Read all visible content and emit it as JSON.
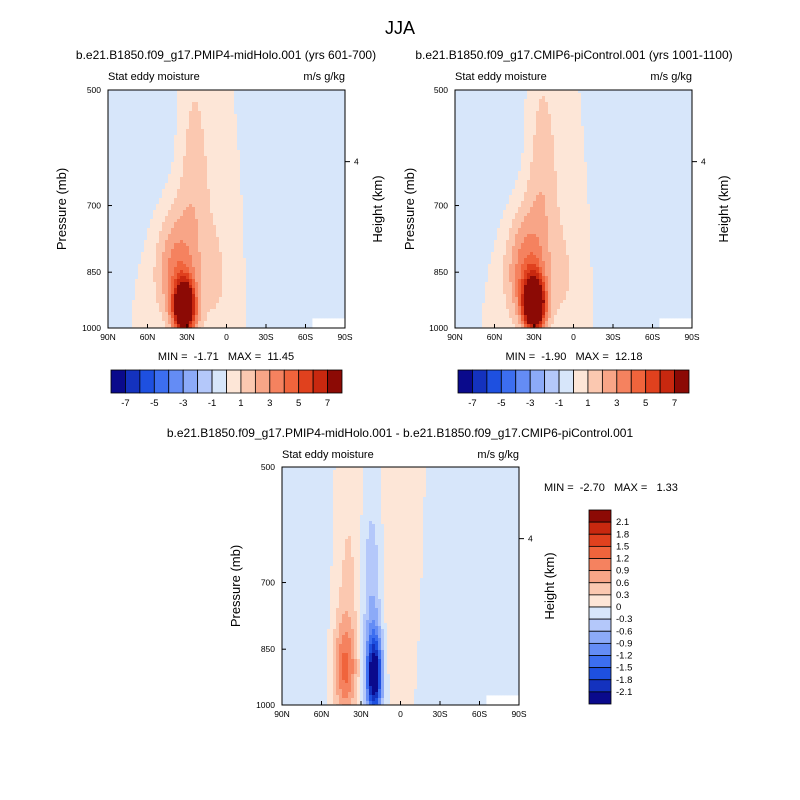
{
  "figure": {
    "title": "JJA"
  },
  "colors": {
    "background": "#ffffff",
    "text": "#000000",
    "missing_region": "#ffffff"
  },
  "chart_data": [
    {
      "type": "heatmap",
      "subtitle": "b.e21.B1850.f09_g17.PMIP4-midHolo.001 (yrs 601-700)",
      "left_label": "Stat eddy moisture",
      "right_label": "m/s g/kg",
      "ylabel": "Pressure (mb)",
      "ylabel_right": "Height (km)",
      "x_ticks": [
        "90N",
        "60N",
        "30N",
        "0",
        "30S",
        "60S",
        "90S"
      ],
      "y_ticks": [
        "500",
        "700",
        "850",
        "1000"
      ],
      "y_tick_values": [
        500,
        700,
        850,
        1000
      ],
      "right_ticks": [
        "4"
      ],
      "right_tick_pressure": [
        616
      ],
      "xlim": [
        90,
        -90
      ],
      "ylim": [
        1000,
        500
      ],
      "y_scale": "log",
      "minmax": "MIN =  -1.71   MAX =  11.45",
      "features": [
        {
          "lat": 32,
          "p": 945,
          "value": 11.45,
          "lat_halfwidth": 8,
          "p_halfwidth": 70
        },
        {
          "lat": 38,
          "p": 840,
          "value": 3.5,
          "lat_halfwidth": 16,
          "p_halfwidth": 140
        },
        {
          "lat": 25,
          "p": 620,
          "value": 1.6,
          "lat_halfwidth": 12,
          "p_halfwidth": 180
        },
        {
          "lat": 8,
          "p": 860,
          "value": 1.1,
          "lat_halfwidth": 16,
          "p_halfwidth": 200
        },
        {
          "lat": -50,
          "p": 800,
          "value": -0.9,
          "lat_halfwidth": 28,
          "p_halfwidth": 260
        },
        {
          "lat": 55,
          "p": 600,
          "value": -0.7,
          "lat_halfwidth": 28,
          "p_halfwidth": 200
        }
      ],
      "missing_corner": {
        "lat_from": -65,
        "pressure_from": 975
      }
    },
    {
      "type": "heatmap",
      "subtitle": "b.e21.B1850.f09_g17.CMIP6-piControl.001 (yrs 1001-1100)",
      "left_label": "Stat eddy moisture",
      "right_label": "m/s g/kg",
      "ylabel": "Pressure (mb)",
      "ylabel_right": "Height (km)",
      "x_ticks": [
        "90N",
        "60N",
        "30N",
        "0",
        "30S",
        "60S",
        "90S"
      ],
      "y_ticks": [
        "500",
        "700",
        "850",
        "1000"
      ],
      "y_tick_values": [
        500,
        700,
        850,
        1000
      ],
      "right_ticks": [
        "4"
      ],
      "right_tick_pressure": [
        616
      ],
      "xlim": [
        90,
        -90
      ],
      "ylim": [
        1000,
        500
      ],
      "y_scale": "log",
      "minmax": "MIN =  -1.90   MAX =  12.18",
      "features": [
        {
          "lat": 30,
          "p": 935,
          "value": 12.18,
          "lat_halfwidth": 8,
          "p_halfwidth": 70
        },
        {
          "lat": 36,
          "p": 840,
          "value": 3.8,
          "lat_halfwidth": 16,
          "p_halfwidth": 140
        },
        {
          "lat": 24,
          "p": 620,
          "value": 1.7,
          "lat_halfwidth": 12,
          "p_halfwidth": 180
        },
        {
          "lat": 6,
          "p": 860,
          "value": 1.0,
          "lat_halfwidth": 16,
          "p_halfwidth": 200
        },
        {
          "lat": -48,
          "p": 800,
          "value": -1.0,
          "lat_halfwidth": 28,
          "p_halfwidth": 260
        },
        {
          "lat": 55,
          "p": 600,
          "value": -0.8,
          "lat_halfwidth": 28,
          "p_halfwidth": 200
        }
      ],
      "missing_corner": {
        "lat_from": -65,
        "pressure_from": 975
      }
    },
    {
      "type": "heatmap",
      "subtitle": "b.e21.B1850.f09_g17.PMIP4-midHolo.001 - b.e21.B1850.f09_g17.CMIP6-piControl.001",
      "left_label": "Stat eddy moisture",
      "right_label": "m/s g/kg",
      "ylabel": "Pressure (mb)",
      "ylabel_right": "Height (km)",
      "x_ticks": [
        "90N",
        "60N",
        "30N",
        "0",
        "30S",
        "60S",
        "90S"
      ],
      "y_ticks": [
        "500",
        "700",
        "850",
        "1000"
      ],
      "y_tick_values": [
        500,
        700,
        850,
        1000
      ],
      "right_ticks": [
        "4"
      ],
      "right_tick_pressure": [
        616
      ],
      "xlim": [
        90,
        -90
      ],
      "ylim": [
        1000,
        500
      ],
      "y_scale": "log",
      "minmax": "MIN =  -2.70   MAX =   1.33",
      "features": [
        {
          "lat": 42,
          "p": 900,
          "value": 1.33,
          "lat_halfwidth": 9,
          "p_halfwidth": 130
        },
        {
          "lat": 40,
          "p": 650,
          "value": 0.35,
          "lat_halfwidth": 12,
          "p_halfwidth": 160
        },
        {
          "lat": 20,
          "p": 920,
          "value": -2.7,
          "lat_halfwidth": 6,
          "p_halfwidth": 110
        },
        {
          "lat": 22,
          "p": 700,
          "value": -0.6,
          "lat_halfwidth": 8,
          "p_halfwidth": 170
        },
        {
          "lat": 0,
          "p": 700,
          "value": 0.3,
          "lat_halfwidth": 18,
          "p_halfwidth": 300
        },
        {
          "lat": -40,
          "p": 800,
          "value": -0.25,
          "lat_halfwidth": 35,
          "p_halfwidth": 300
        },
        {
          "lat": 65,
          "p": 700,
          "value": -0.2,
          "lat_halfwidth": 20,
          "p_halfwidth": 300
        }
      ],
      "missing_corner": {
        "lat_from": -65,
        "pressure_from": 975
      }
    }
  ],
  "colorbars": {
    "top": {
      "orientation": "horizontal",
      "labels": [
        "-7",
        "-5",
        "-3",
        "-1",
        "1",
        "3",
        "5",
        "7"
      ],
      "levels": [
        -8,
        -7,
        -6,
        -5,
        -4,
        -3,
        -2,
        -1,
        0,
        1,
        2,
        3,
        4,
        5,
        6,
        7,
        8
      ],
      "colors": [
        "#0a0a8c",
        "#1432be",
        "#1e50e0",
        "#3c6ef0",
        "#648cf5",
        "#8caaf8",
        "#b4c8fa",
        "#d7e6fa",
        "#fde6d7",
        "#fbc8b0",
        "#f8a587",
        "#f5825f",
        "#f0643c",
        "#e0411e",
        "#c8280f",
        "#8c0a05"
      ]
    },
    "diff": {
      "orientation": "vertical",
      "labels": [
        "2.1",
        "1.8",
        "1.5",
        "1.2",
        "0.9",
        "0.6",
        "0.3",
        "0",
        "-0.3",
        "-0.6",
        "-0.9",
        "-1.2",
        "-1.5",
        "-1.8",
        "-2.1"
      ],
      "levels": [
        -2.4,
        -2.1,
        -1.8,
        -1.5,
        -1.2,
        -0.9,
        -0.6,
        -0.3,
        0,
        0.3,
        0.6,
        0.9,
        1.2,
        1.5,
        1.8,
        2.1,
        2.4
      ],
      "colors": [
        "#0a0a8c",
        "#1432be",
        "#1e50e0",
        "#3c6ef0",
        "#648cf5",
        "#8caaf8",
        "#b4c8fa",
        "#d7e6fa",
        "#fde6d7",
        "#fbc8b0",
        "#f8a587",
        "#f5825f",
        "#f0643c",
        "#e0411e",
        "#c8280f",
        "#8c0a05"
      ]
    }
  }
}
